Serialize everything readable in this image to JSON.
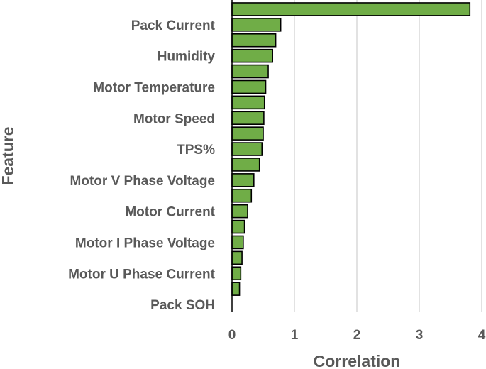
{
  "chart_data": {
    "type": "bar",
    "orientation": "horizontal",
    "title": "",
    "xlabel": "Correlation",
    "ylabel": "Feature",
    "xlim": [
      0,
      4
    ],
    "xticks": [
      "0",
      "1",
      "2",
      "3",
      "4"
    ],
    "grid": true,
    "bar_color": "#70ad47",
    "categories": [
      "",
      "Pack Current",
      "",
      "Humidity",
      "",
      "Motor Temperature",
      "",
      "Motor Speed",
      "",
      "TPS%",
      "",
      "Motor V Phase Voltage",
      "",
      "Motor Current",
      "",
      "Motor I Phase Voltage",
      "",
      "Motor U Phase Current",
      "",
      "Pack SOH"
    ],
    "values": [
      3.81,
      0.78,
      0.7,
      0.65,
      0.58,
      0.54,
      0.52,
      0.51,
      0.5,
      0.48,
      0.44,
      0.35,
      0.31,
      0.25,
      0.2,
      0.18,
      0.16,
      0.14,
      0.12,
      0.0
    ]
  }
}
